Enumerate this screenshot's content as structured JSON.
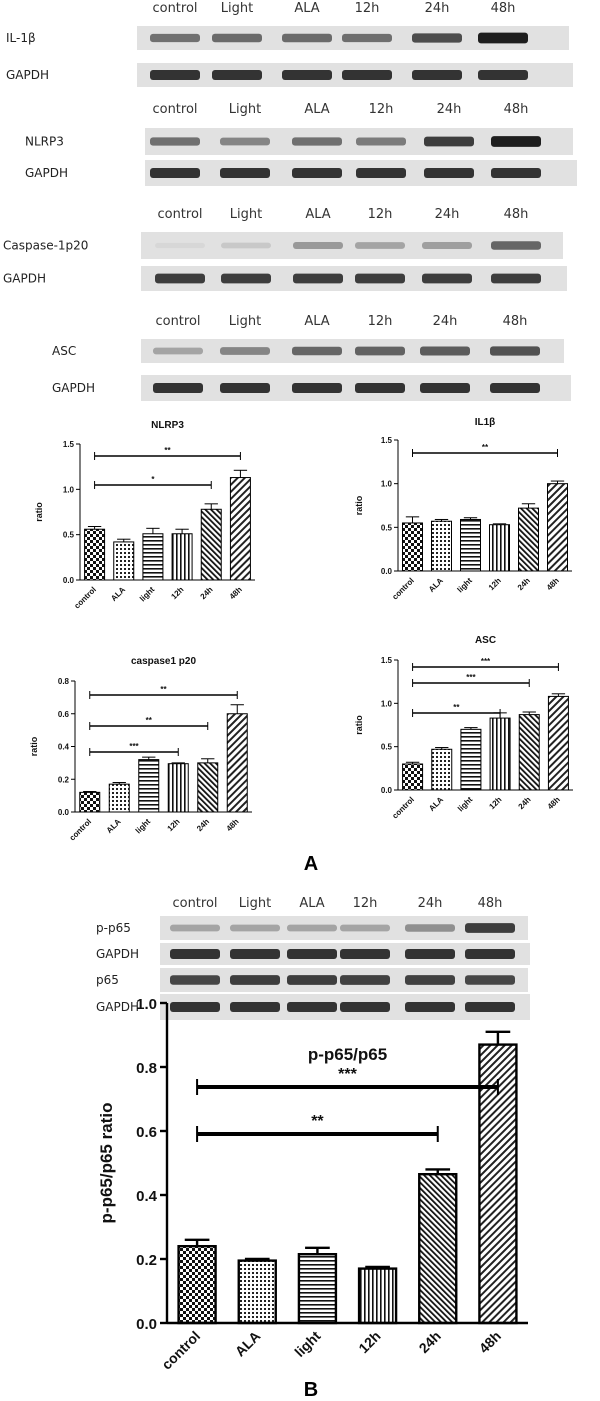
{
  "blot_panels": [
    {
      "lanes": [
        "control",
        "Light",
        "ALA",
        "12h",
        "24h",
        "48h"
      ],
      "rows": [
        {
          "label": "IL-1β",
          "band_intensity": [
            0.55,
            0.58,
            0.58,
            0.56,
            0.72,
            0.95
          ]
        },
        {
          "label": "GAPDH",
          "band_intensity": [
            0.85,
            0.85,
            0.85,
            0.85,
            0.85,
            0.85
          ]
        }
      ]
    },
    {
      "lanes": [
        "control",
        "Light",
        "ALA",
        "12h",
        "24h",
        "48h"
      ],
      "rows": [
        {
          "label": "NLRP3",
          "band_intensity": [
            0.55,
            0.45,
            0.55,
            0.5,
            0.8,
            0.95
          ]
        },
        {
          "label": "GAPDH",
          "band_intensity": [
            0.85,
            0.85,
            0.85,
            0.85,
            0.85,
            0.85
          ]
        }
      ]
    },
    {
      "lanes": [
        "control",
        "Light",
        "ALA",
        "12h",
        "24h",
        "48h"
      ],
      "rows": [
        {
          "label": "Caspase-1p20",
          "band_intensity": [
            0.05,
            0.12,
            0.35,
            0.3,
            0.32,
            0.6
          ]
        },
        {
          "label": "GAPDH",
          "band_intensity": [
            0.8,
            0.8,
            0.8,
            0.8,
            0.8,
            0.8
          ]
        }
      ]
    },
    {
      "lanes": [
        "control",
        "Light",
        "ALA",
        "12h",
        "24h",
        "48h"
      ],
      "rows": [
        {
          "label": "ASC",
          "band_intensity": [
            0.3,
            0.45,
            0.6,
            0.62,
            0.65,
            0.7
          ]
        },
        {
          "label": "GAPDH",
          "band_intensity": [
            0.85,
            0.85,
            0.85,
            0.85,
            0.85,
            0.85
          ]
        }
      ]
    },
    {
      "lanes": [
        "control",
        "Light",
        "ALA",
        "12h",
        "24h",
        "48h"
      ],
      "rows": [
        {
          "label": "p-p65",
          "band_intensity": [
            0.3,
            0.3,
            0.3,
            0.3,
            0.4,
            0.8
          ]
        },
        {
          "label": "GAPDH",
          "band_intensity": [
            0.85,
            0.85,
            0.85,
            0.85,
            0.85,
            0.85
          ]
        },
        {
          "label": "p65",
          "band_intensity": [
            0.75,
            0.8,
            0.8,
            0.78,
            0.78,
            0.75
          ]
        },
        {
          "label": "GAPDH",
          "band_intensity": [
            0.85,
            0.85,
            0.85,
            0.85,
            0.85,
            0.85
          ]
        }
      ]
    }
  ],
  "panel_labels": [
    "A",
    "B"
  ],
  "chart_data": [
    {
      "type": "bar",
      "title": "NLRP3",
      "ylabel": "ratio",
      "categories": [
        "control",
        "ALA",
        "light",
        "12h",
        "24h",
        "48h"
      ],
      "values": [
        0.56,
        0.42,
        0.51,
        0.51,
        0.78,
        1.13
      ],
      "errors": [
        0.03,
        0.03,
        0.06,
        0.05,
        0.06,
        0.08
      ],
      "ylim": [
        0,
        1.5
      ],
      "yticks": [
        "0.0",
        "0.5",
        "1.0",
        "1.5"
      ],
      "significance": [
        {
          "from": "control",
          "to": "48h",
          "label": "**"
        },
        {
          "from": "control",
          "to": "24h",
          "label": "*"
        }
      ]
    },
    {
      "type": "bar",
      "title": "IL1β",
      "ylabel": "ratio",
      "categories": [
        "control",
        "ALA",
        "light",
        "12h",
        "24h",
        "48h"
      ],
      "values": [
        0.55,
        0.57,
        0.59,
        0.53,
        0.72,
        1.0
      ],
      "errors": [
        0.07,
        0.02,
        0.02,
        0.01,
        0.05,
        0.03
      ],
      "ylim": [
        0,
        1.5
      ],
      "yticks": [
        "0.0",
        "0.5",
        "1.0",
        "1.5"
      ],
      "significance": [
        {
          "from": "control",
          "to": "48h",
          "label": "**"
        }
      ]
    },
    {
      "type": "bar",
      "title": "caspase1 p20",
      "ylabel": "ratio",
      "categories": [
        "control",
        "ALA",
        "light",
        "12h",
        "24h",
        "48h"
      ],
      "values": [
        0.12,
        0.17,
        0.32,
        0.295,
        0.3,
        0.6
      ],
      "errors": [
        0.005,
        0.01,
        0.015,
        0.005,
        0.025,
        0.055
      ],
      "ylim": [
        0,
        0.8
      ],
      "yticks": [
        "0.0",
        "0.2",
        "0.4",
        "0.6",
        "0.8"
      ],
      "significance": [
        {
          "from": "control",
          "to": "48h",
          "label": "**"
        },
        {
          "from": "control",
          "to": "24h",
          "label": "**"
        },
        {
          "from": "control",
          "to": "12h",
          "label": "***"
        }
      ]
    },
    {
      "type": "bar",
      "title": "ASC",
      "ylabel": "ratio",
      "categories": [
        "control",
        "ALA",
        "light",
        "12h",
        "24h",
        "48h"
      ],
      "values": [
        0.3,
        0.47,
        0.7,
        0.83,
        0.87,
        1.08
      ],
      "errors": [
        0.02,
        0.02,
        0.02,
        0.06,
        0.03,
        0.03
      ],
      "ylim": [
        0,
        1.5
      ],
      "yticks": [
        "0.0",
        "0.5",
        "1.0",
        "1.5"
      ],
      "significance": [
        {
          "from": "control",
          "to": "48h",
          "label": "***"
        },
        {
          "from": "control",
          "to": "24h",
          "label": "***"
        },
        {
          "from": "control",
          "to": "12h",
          "label": "**"
        }
      ]
    },
    {
      "type": "bar",
      "title": "p-p65/p65",
      "ylabel": "p-p65/p65 ratio",
      "categories": [
        "control",
        "ALA",
        "light",
        "12h",
        "24h",
        "48h"
      ],
      "values": [
        0.24,
        0.195,
        0.215,
        0.17,
        0.465,
        0.87
      ],
      "errors": [
        0.02,
        0.005,
        0.02,
        0.005,
        0.015,
        0.04
      ],
      "ylim": [
        0,
        1.0
      ],
      "yticks": [
        "0.0",
        "0.2",
        "0.4",
        "0.6",
        "0.8",
        "1.0"
      ],
      "significance": [
        {
          "from": "control",
          "to": "48h",
          "label": "***"
        },
        {
          "from": "control",
          "to": "24h",
          "label": "**"
        }
      ]
    }
  ]
}
